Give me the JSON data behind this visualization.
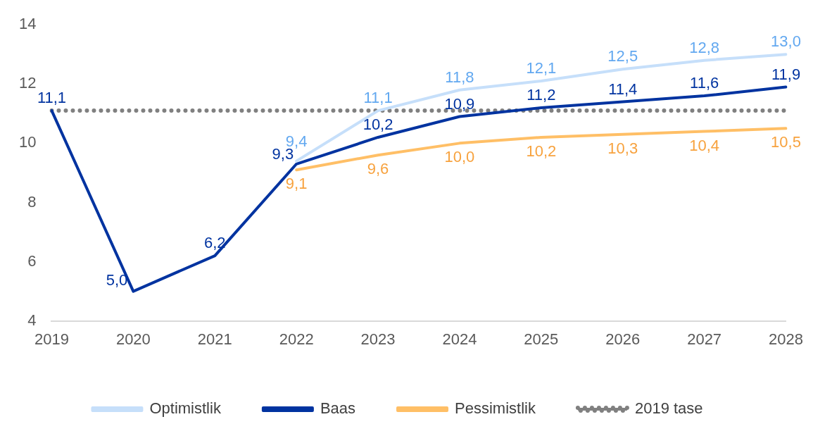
{
  "chart_data": {
    "type": "line",
    "categories": [
      "2019",
      "2020",
      "2021",
      "2022",
      "2023",
      "2024",
      "2025",
      "2026",
      "2027",
      "2028"
    ],
    "ylim": [
      4,
      14
    ],
    "yticks": [
      4,
      6,
      8,
      10,
      12,
      14
    ],
    "grid": false,
    "legend": "bottom",
    "series": [
      {
        "name": "Optimistlik",
        "color": "#c6dffa",
        "line_style": "solid",
        "values": [
          null,
          null,
          null,
          9.4,
          11.1,
          11.8,
          12.1,
          12.5,
          12.8,
          13.0
        ],
        "value_labels": [
          null,
          null,
          null,
          "9,4",
          "11,1",
          "11,8",
          "12,1",
          "12,5",
          "12,8",
          "13,0"
        ]
      },
      {
        "name": "Baas",
        "color": "#0033a0",
        "line_style": "solid",
        "values": [
          11.1,
          5.0,
          6.2,
          9.3,
          10.2,
          10.9,
          11.2,
          11.4,
          11.6,
          11.9
        ],
        "value_labels": [
          "11,1",
          "5,0",
          "6,2",
          "9,3",
          "10,2",
          "10,9",
          "11,2",
          "11,4",
          "11,6",
          "11,9"
        ]
      },
      {
        "name": "Pessimistlik",
        "color": "#ffbf66",
        "line_style": "solid",
        "values": [
          null,
          null,
          null,
          9.1,
          9.6,
          10.0,
          10.2,
          10.3,
          10.4,
          10.5
        ],
        "value_labels": [
          null,
          null,
          null,
          "9,1",
          "9,6",
          "10,0",
          "10,2",
          "10,3",
          "10,4",
          "10,5"
        ]
      },
      {
        "name": "2019 tase",
        "color": "#808080",
        "line_style": "dotted",
        "values": [
          11.1,
          11.1,
          11.1,
          11.1,
          11.1,
          11.1,
          11.1,
          11.1,
          11.1,
          11.1
        ]
      }
    ]
  }
}
